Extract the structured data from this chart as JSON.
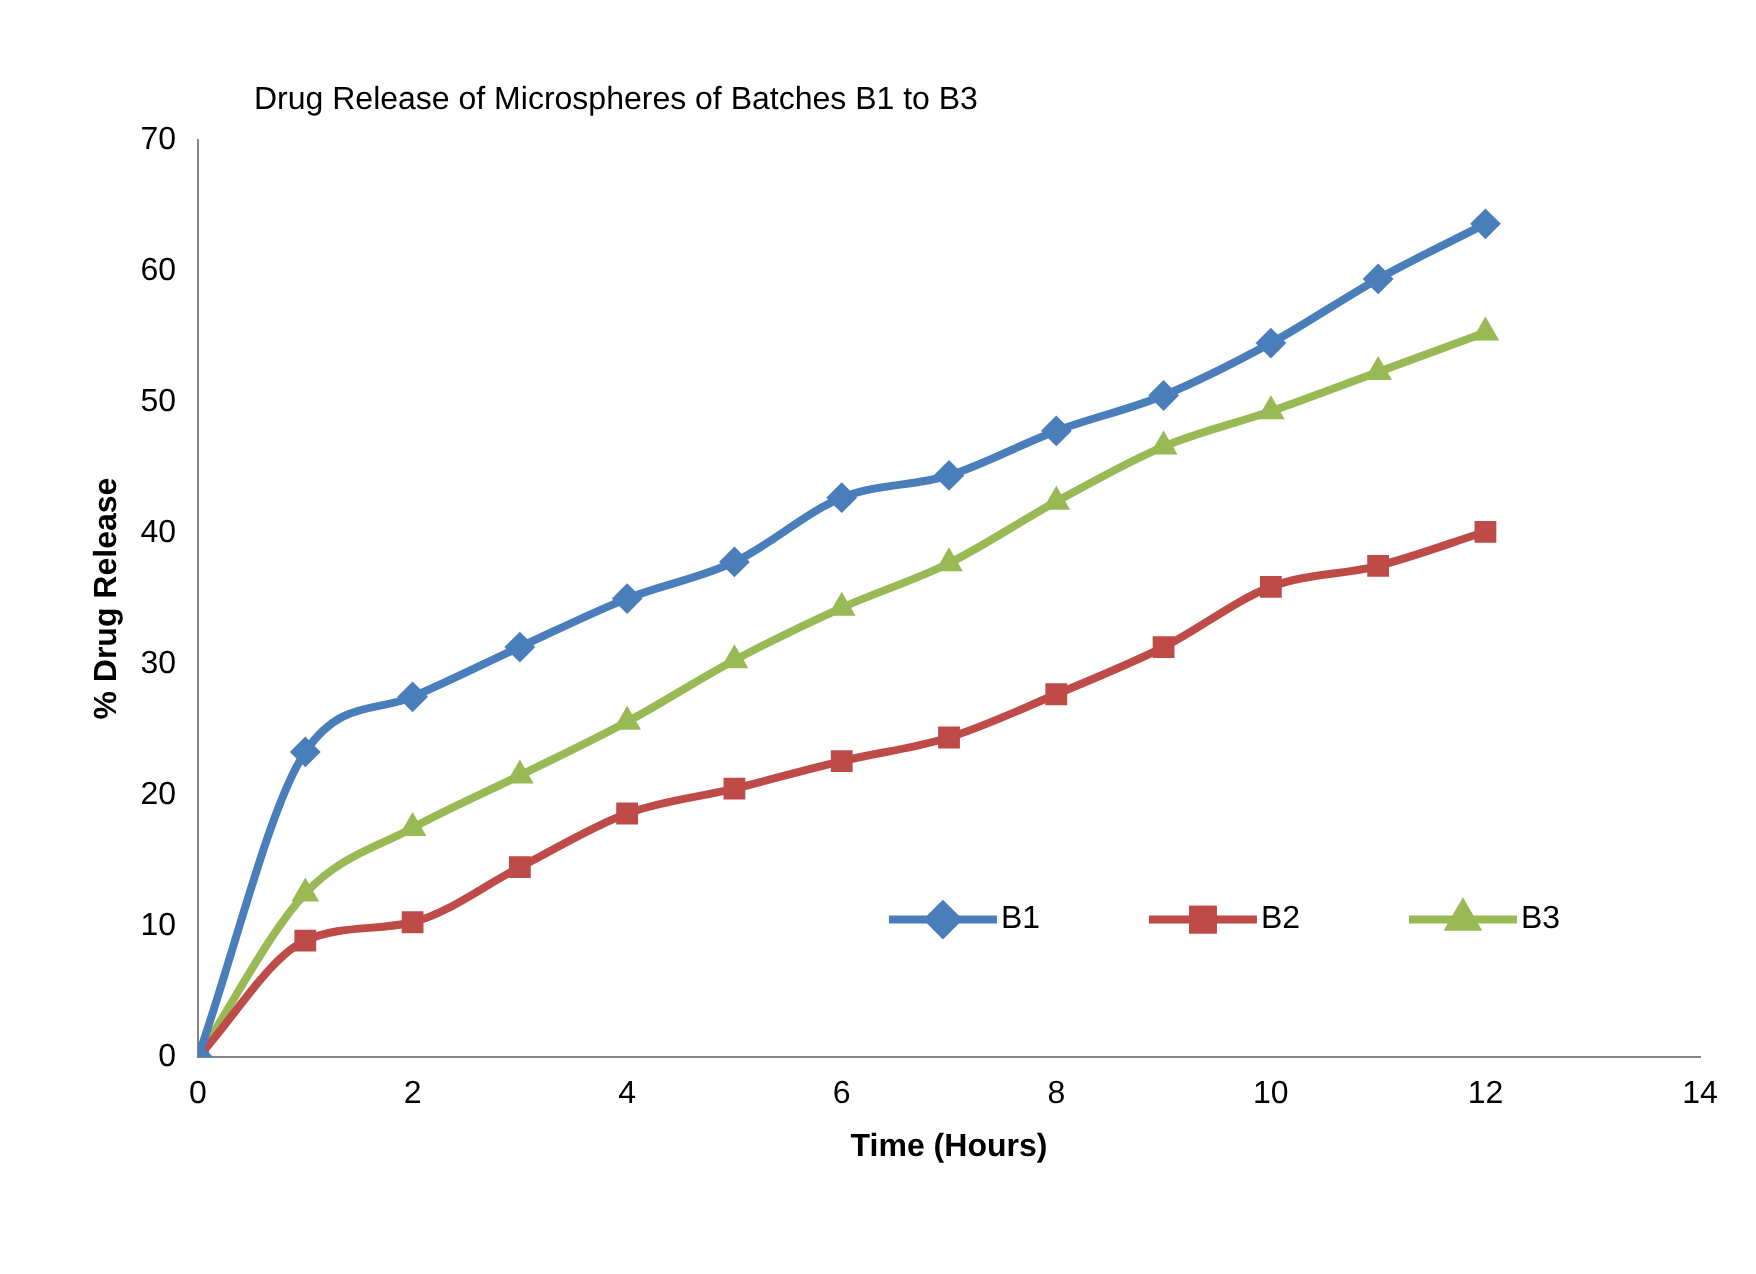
{
  "chart_data": {
    "type": "line",
    "title": "Drug Release of Microspheres of Batches B1 to B3",
    "xlabel": "Time (Hours)",
    "ylabel": "% Drug Release",
    "x": [
      0,
      1,
      2,
      3,
      4,
      5,
      6,
      7,
      8,
      9,
      10,
      11,
      12
    ],
    "series": [
      {
        "name": "B1",
        "color": "#4a7ebb",
        "marker": "diamond",
        "values": [
          0,
          23.3,
          27.5,
          31.3,
          35,
          37.8,
          42.7,
          44.4,
          47.8,
          50.5,
          54.5,
          59.4,
          63.6
        ]
      },
      {
        "name": "B2",
        "color": "#be4b48",
        "marker": "square",
        "values": [
          0,
          8.9,
          10.3,
          14.5,
          18.6,
          20.5,
          22.6,
          24.4,
          27.7,
          31.3,
          35.9,
          37.5,
          40.1
        ]
      },
      {
        "name": "B3",
        "color": "#98b954",
        "marker": "triangle",
        "values": [
          0,
          12.5,
          17.5,
          21.5,
          25.6,
          30.3,
          34.3,
          37.7,
          42.4,
          46.6,
          49.3,
          52.3,
          55.3
        ]
      }
    ],
    "xlim": [
      0,
      14
    ],
    "xticks": [
      0,
      2,
      4,
      6,
      8,
      10,
      12,
      14
    ],
    "ylim": [
      0,
      70
    ],
    "yticks": [
      0,
      10,
      20,
      30,
      40,
      50,
      60,
      70
    ],
    "grid": false,
    "legend": "bottom right",
    "line_style": "solid"
  }
}
